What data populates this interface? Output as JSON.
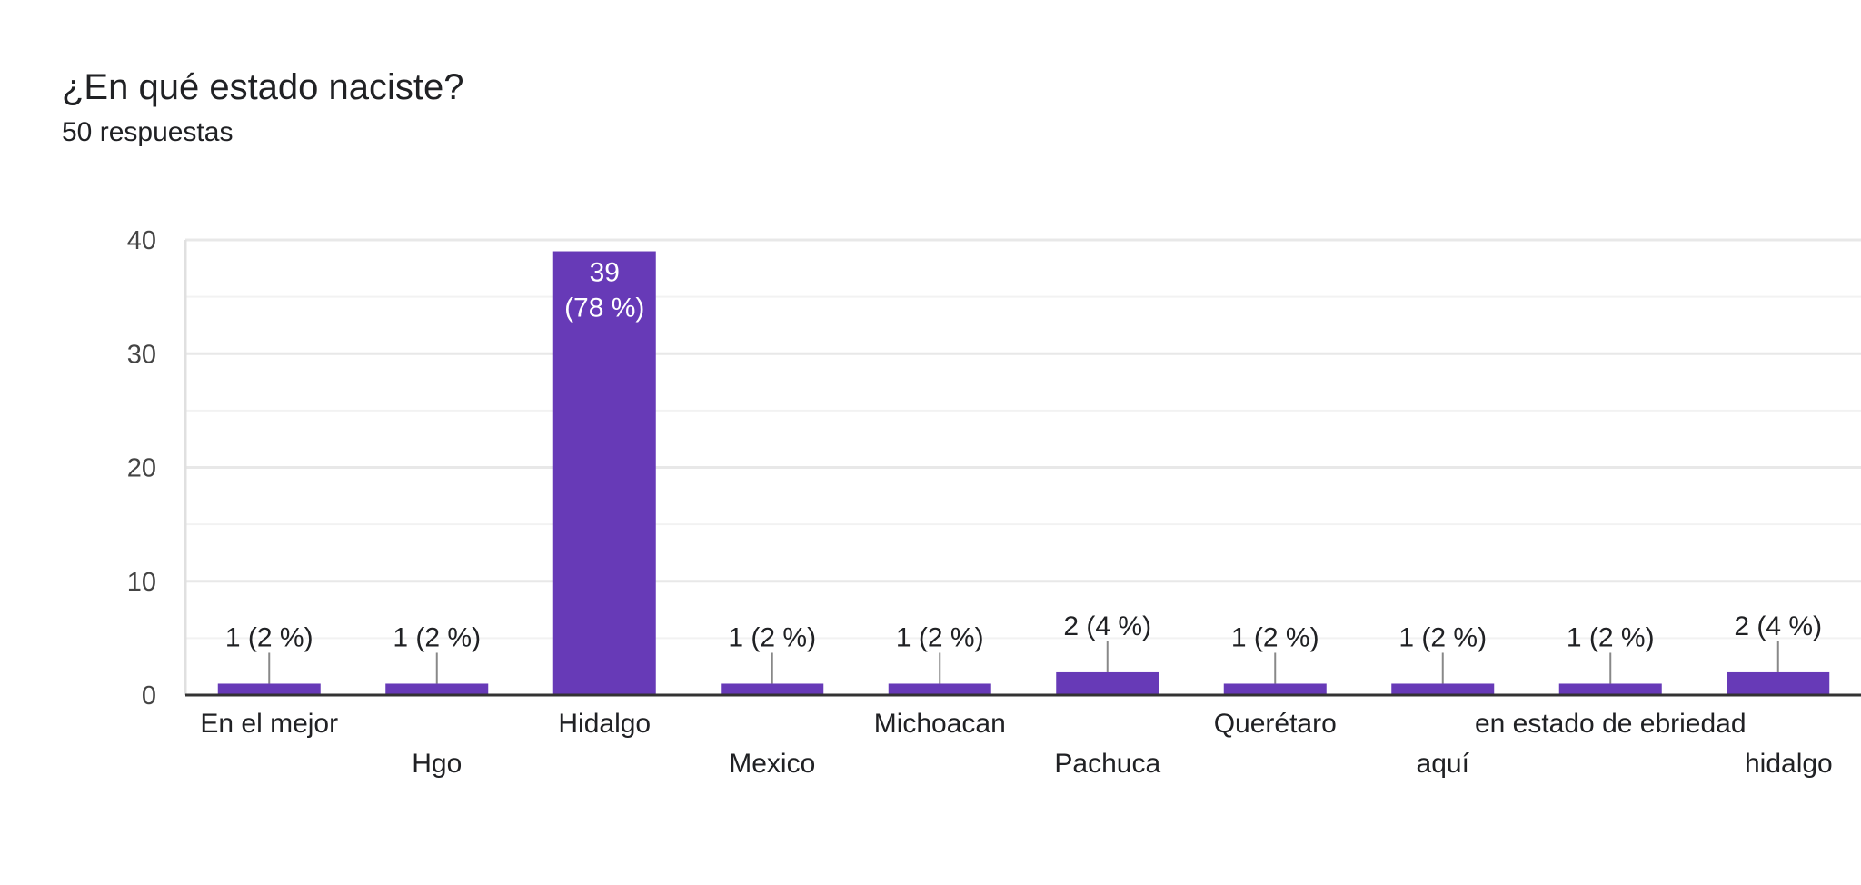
{
  "question": {
    "title": "¿En qué estado naciste?",
    "responses": "50 respuestas"
  },
  "colors": {
    "bar": "#673ab7",
    "grid": "#e8e8e8",
    "axis": "#333333",
    "leader": "#888888"
  },
  "chart_data": {
    "type": "bar",
    "title": "¿En qué estado naciste?",
    "subtitle": "50 respuestas",
    "xlabel": "",
    "ylabel": "",
    "ylim": [
      0,
      40
    ],
    "yticks": [
      0,
      10,
      20,
      30,
      40
    ],
    "grid": true,
    "legend": "none",
    "categories": [
      "En el mejor",
      "Hgo",
      "Hidalgo",
      "Mexico",
      "Michoacan",
      "Pachuca",
      "Querétaro",
      "aquí",
      "en estado de ebriedad",
      "hidalgo"
    ],
    "values": [
      1,
      1,
      39,
      1,
      1,
      2,
      1,
      1,
      1,
      2
    ],
    "data_labels": [
      "1 (2 %)",
      "1 (2 %)",
      "39 (78 %)",
      "1 (2 %)",
      "1 (2 %)",
      "2 (4 %)",
      "1 (2 %)",
      "1 (2 %)",
      "1 (2 %)",
      "2 (4 %)"
    ],
    "inside_label_lines": {
      "2": [
        "39",
        "(78 %)"
      ]
    }
  }
}
